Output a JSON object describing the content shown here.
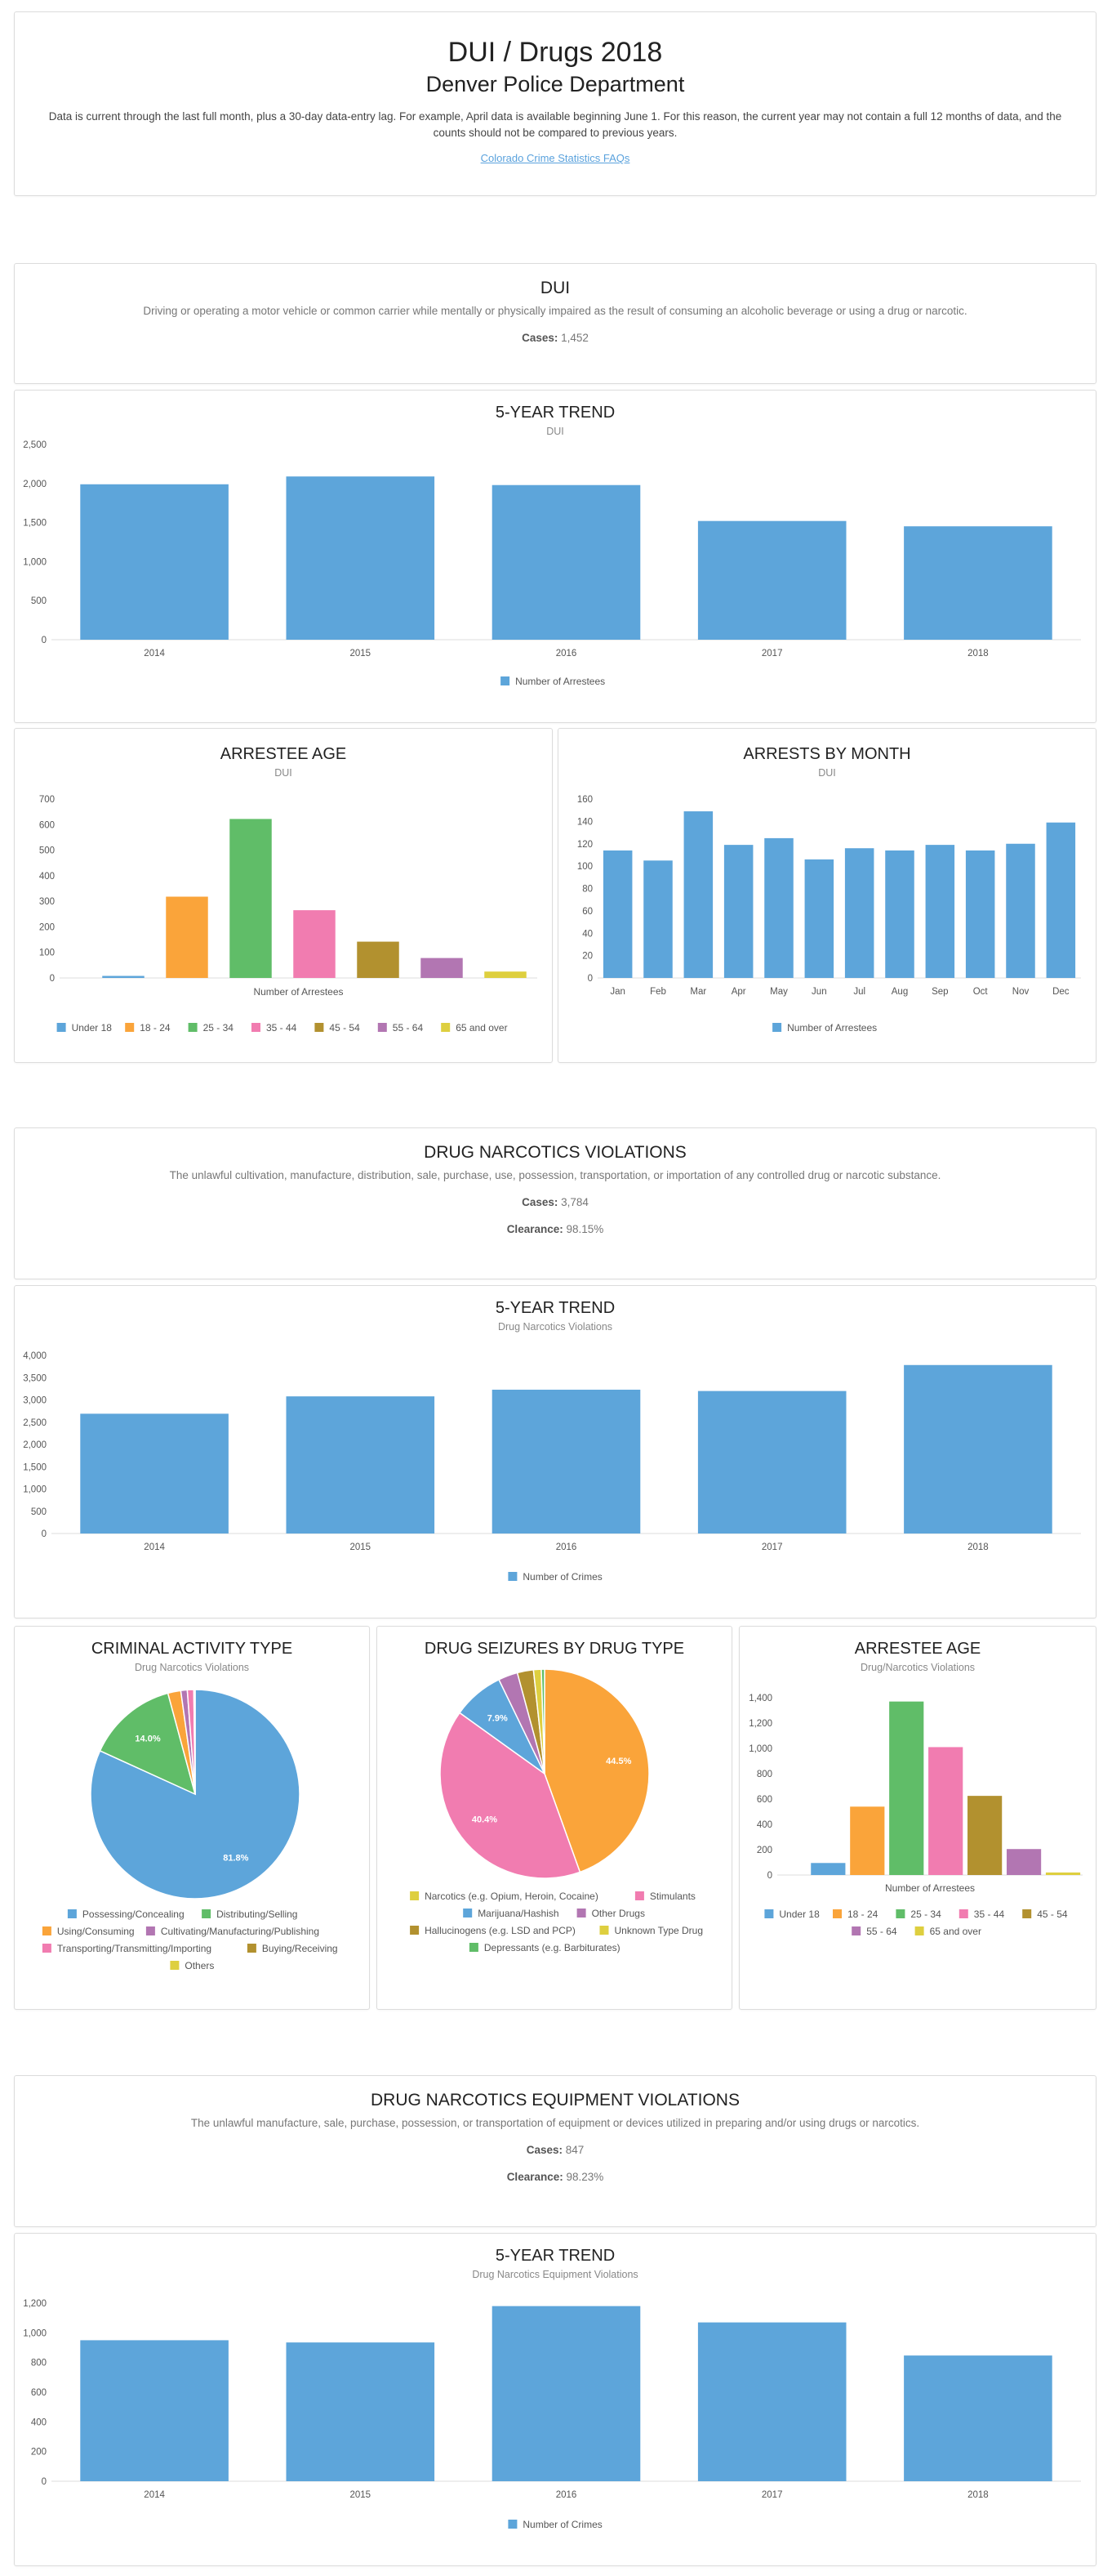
{
  "header": {
    "title": "DUI / Drugs 2018",
    "subtitle": "Denver Police Department",
    "note": "Data is current through the last full month, plus a 30-day data-entry lag. For example, April data is available beginning June 1. For this reason, the current year may not contain a full 12 months of data, and the counts should not be compared to previous years.",
    "faq_link": "Colorado Crime Statistics FAQs"
  },
  "colors": {
    "blue": "#5da5da",
    "orange": "#faa43a",
    "green": "#60bd68",
    "pink": "#f17cb0",
    "olive": "#b2912f",
    "purple": "#b276b2",
    "yellow": "#decf3f"
  },
  "dui": {
    "title": "DUI",
    "description": "Driving or operating a motor vehicle or common carrier while mentally or physically impaired as the result of consuming an alcoholic beverage or using a drug or narcotic.",
    "cases_label": "Cases:",
    "cases_value": "1,452"
  },
  "drug": {
    "title": "DRUG NARCOTICS VIOLATIONS",
    "description": "The unlawful cultivation, manufacture, distribution, sale, purchase, use, possession, transportation, or importation of any controlled drug or narcotic substance.",
    "cases_label": "Cases:",
    "cases_value": "3,784",
    "clearance_label": "Clearance:",
    "clearance_value": "98.15%"
  },
  "equip": {
    "title": "DRUG NARCOTICS EQUIPMENT VIOLATIONS",
    "description": "The unlawful manufacture, sale, purchase, possession, or transportation of equipment or devices utilized in preparing and/or using drugs or narcotics.",
    "cases_label": "Cases:",
    "cases_value": "847",
    "clearance_label": "Clearance:",
    "clearance_value": "98.23%"
  },
  "chart_data": [
    {
      "id": "dui_trend",
      "type": "bar",
      "title": "5-YEAR TREND",
      "subtitle": "DUI",
      "categories": [
        "2014",
        "2015",
        "2016",
        "2017",
        "2018"
      ],
      "values": [
        1990,
        2090,
        1980,
        1520,
        1452
      ],
      "ylim": [
        0,
        2500
      ],
      "yticks": [
        0,
        500,
        1000,
        1500,
        2000,
        2500
      ],
      "legend": [
        "Number of Arrestees"
      ],
      "colors": [
        "#5da5da"
      ],
      "grid": false,
      "legend_position": "bottom"
    },
    {
      "id": "dui_age",
      "type": "bar",
      "title": "ARRESTEE AGE",
      "subtitle": "DUI",
      "categories": [
        "Under 18",
        "18 - 24",
        "25 - 34",
        "35 - 44",
        "45 - 54",
        "55 - 64",
        "65 and over"
      ],
      "values": [
        8,
        318,
        622,
        265,
        142,
        78,
        25
      ],
      "ylim": [
        0,
        700
      ],
      "yticks": [
        0,
        100,
        200,
        300,
        400,
        500,
        600,
        700
      ],
      "xlabel": "Number of Arrestees",
      "legend": [
        "Under 18",
        "18 - 24",
        "25 - 34",
        "35 - 44",
        "45 - 54",
        "55 - 64",
        "65 and over"
      ],
      "colors": [
        "#5da5da",
        "#faa43a",
        "#60bd68",
        "#f17cb0",
        "#b2912f",
        "#b276b2",
        "#decf3f"
      ],
      "legend_position": "bottom"
    },
    {
      "id": "dui_month",
      "type": "bar",
      "title": "ARRESTS BY MONTH",
      "subtitle": "DUI",
      "categories": [
        "Jan",
        "Feb",
        "Mar",
        "Apr",
        "May",
        "Jun",
        "Jul",
        "Aug",
        "Sep",
        "Oct",
        "Nov",
        "Dec"
      ],
      "values": [
        114,
        105,
        149,
        119,
        125,
        106,
        116,
        114,
        119,
        114,
        120,
        139
      ],
      "ylim": [
        0,
        160
      ],
      "yticks": [
        0,
        20,
        40,
        60,
        80,
        100,
        120,
        140,
        160
      ],
      "legend": [
        "Number of Arrestees"
      ],
      "colors": [
        "#5da5da"
      ],
      "legend_position": "bottom"
    },
    {
      "id": "drug_trend",
      "type": "bar",
      "title": "5-YEAR TREND",
      "subtitle": "Drug Narcotics Violations",
      "categories": [
        "2014",
        "2015",
        "2016",
        "2017",
        "2018"
      ],
      "values": [
        2690,
        3080,
        3230,
        3200,
        3784
      ],
      "ylim": [
        0,
        4000
      ],
      "yticks": [
        0,
        500,
        1000,
        1500,
        2000,
        2500,
        3000,
        3500,
        4000
      ],
      "legend": [
        "Number of Crimes"
      ],
      "colors": [
        "#5da5da"
      ],
      "legend_position": "bottom"
    },
    {
      "id": "activity_pie",
      "type": "pie",
      "title": "CRIMINAL ACTIVITY TYPE",
      "subtitle": "Drug Narcotics Violations",
      "labels": [
        "Possessing/Concealing",
        "Distributing/Selling",
        "Using/Consuming",
        "Cultivating/Manufacturing/Publishing",
        "Transporting/Transmitting/Importing",
        "Buying/Receiving",
        "Others"
      ],
      "values": [
        81.8,
        14.0,
        2.0,
        1.0,
        1.0,
        0.1,
        0.1
      ],
      "value_labels": [
        "81.8%",
        "14.0%",
        "",
        "",
        "",
        "",
        ""
      ],
      "colors": [
        "#5da5da",
        "#60bd68",
        "#faa43a",
        "#b276b2",
        "#f17cb0",
        "#b2912f",
        "#decf3f"
      ],
      "legend_position": "bottom"
    },
    {
      "id": "seizure_pie",
      "type": "pie",
      "title": "DRUG SEIZURES BY DRUG TYPE",
      "subtitle": "",
      "labels": [
        "Narcotics (e.g. Opium, Heroin, Cocaine)",
        "Stimulants",
        "Marijuana/Hashish",
        "Other Drugs",
        "Hallucinogens (e.g. LSD and PCP)",
        "Unknown Type Drug",
        "Depressants (e.g. Barbiturates)"
      ],
      "values": [
        44.5,
        40.4,
        7.9,
        3.0,
        2.5,
        1.2,
        0.5
      ],
      "value_labels": [
        "44.5%",
        "40.4%",
        "7.9%",
        "",
        "",
        "",
        ""
      ],
      "colors": [
        "#faa43a",
        "#f17cb0",
        "#5da5da",
        "#b276b2",
        "#b2912f",
        "#decf3f",
        "#60bd68"
      ],
      "legend_colors": [
        "#decf3f",
        "#f17cb0",
        "#5da5da",
        "#b276b2",
        "#b2912f",
        "#decf3f",
        "#60bd68"
      ],
      "legend_position": "bottom"
    },
    {
      "id": "drug_age",
      "type": "bar",
      "title": "ARRESTEE AGE",
      "subtitle": "Drug/Narcotics Violations",
      "categories": [
        "Under 18",
        "18 - 24",
        "25 - 34",
        "35 - 44",
        "45 - 54",
        "55 - 64",
        "65 and over"
      ],
      "values": [
        95,
        540,
        1370,
        1010,
        625,
        205,
        20
      ],
      "ylim": [
        0,
        1400
      ],
      "yticks": [
        0,
        200,
        400,
        600,
        800,
        1000,
        1200,
        1400
      ],
      "xlabel": "Number of Arrestees",
      "legend": [
        "Under 18",
        "18 - 24",
        "25 - 34",
        "35 - 44",
        "45 - 54",
        "55 - 64",
        "65 and over"
      ],
      "colors": [
        "#5da5da",
        "#faa43a",
        "#60bd68",
        "#f17cb0",
        "#b2912f",
        "#b276b2",
        "#decf3f"
      ],
      "legend_position": "bottom"
    },
    {
      "id": "equip_trend",
      "type": "bar",
      "title": "5-YEAR TREND",
      "subtitle": "Drug Narcotics Equipment Violations",
      "categories": [
        "2014",
        "2015",
        "2016",
        "2017",
        "2018"
      ],
      "values": [
        950,
        935,
        1180,
        1070,
        847
      ],
      "ylim": [
        0,
        1200
      ],
      "yticks": [
        0,
        200,
        400,
        600,
        800,
        1000,
        1200
      ],
      "legend": [
        "Number of Crimes"
      ],
      "colors": [
        "#5da5da"
      ],
      "legend_position": "bottom"
    }
  ]
}
